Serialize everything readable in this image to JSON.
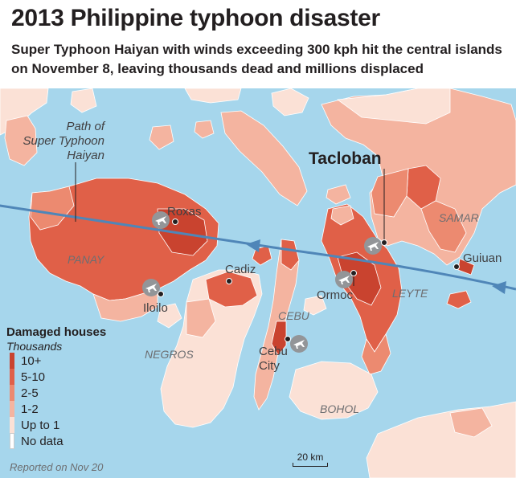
{
  "header": {
    "title": "2013 Philippine typhoon disaster",
    "subtitle": "Super Typhoon Haiyan with winds exceeding 300 kph hit the central islands on November 8, leaving thousands dead and millions displaced"
  },
  "colors": {
    "sea": "#a6d6ec",
    "land_no_data": "#ffffff",
    "up_to_1": "#fbe1d6",
    "one_to_two": "#f4b4a0",
    "two_to_five": "#ec8a70",
    "five_to_ten": "#e06048",
    "ten_plus": "#c9432f",
    "track": "#4f86b8"
  },
  "labels": {
    "path": [
      "Path of",
      "Super Typhoon",
      "Haiyan"
    ],
    "tacloban": "Tacloban",
    "roxas": "Roxas",
    "iloilo": "Iloilo",
    "cadiz": "Cadiz",
    "cebu_city": [
      "Cebu",
      "City"
    ],
    "ormoc": "Ormoc",
    "guiuan": "Guiuan",
    "panay": "PANAY",
    "negros": "NEGROS",
    "cebu": "CEBU",
    "leyte": "LEYTE",
    "samar": "SAMAR",
    "bohol": "BOHOL"
  },
  "icons": {
    "airport": "airplane-icon",
    "city": "city-dot-icon"
  },
  "legend": {
    "title": "Damaged houses",
    "unit": "Thousands",
    "items": [
      {
        "label": "10+",
        "color": "#c9432f"
      },
      {
        "label": "5-10",
        "color": "#e06048"
      },
      {
        "label": "2-5",
        "color": "#ec8a70"
      },
      {
        "label": "1-2",
        "color": "#f4b4a0"
      },
      {
        "label": "Up to 1",
        "color": "#fbe1d6"
      },
      {
        "label": "No data",
        "color": "#ffffff"
      }
    ]
  },
  "note": "Reported on Nov 20",
  "scale": "20 km"
}
